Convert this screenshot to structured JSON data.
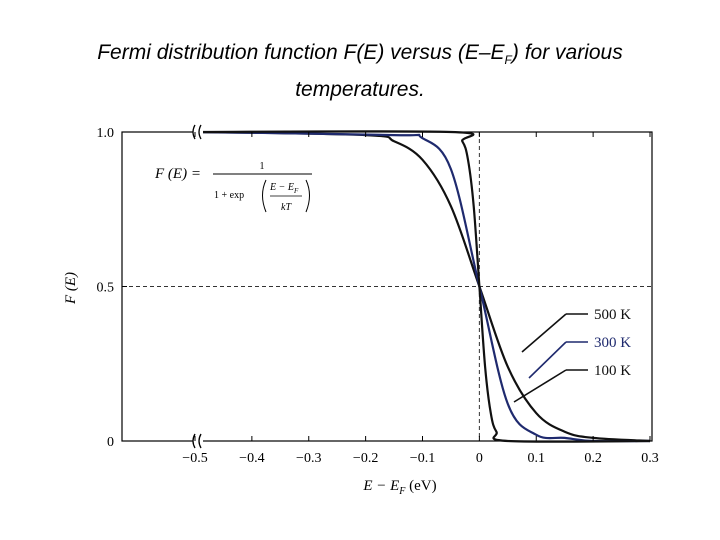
{
  "title": {
    "line1_pre": "Fermi distribution function F(E) versus (E–E",
    "line1_sub": "F",
    "line1_post": ") for various",
    "line2": "temperatures."
  },
  "chart_data": {
    "type": "line",
    "xlabel_main": "E − E",
    "xlabel_sub": "F",
    "xlabel_unit": " (eV)",
    "ylabel": "F (E)",
    "xlim": [
      -0.5,
      0.3
    ],
    "ylim": [
      0,
      1
    ],
    "x_ticks": [
      -0.5,
      -0.4,
      -0.3,
      -0.2,
      -0.1,
      0,
      0.1,
      0.2,
      0.3
    ],
    "x_tick_labels": [
      "−0.5",
      "−0.4",
      "−0.3",
      "−0.2",
      "−0.1",
      "0",
      "0.1",
      "0.2",
      "0.3"
    ],
    "y_ticks": [
      0,
      0.5,
      1.0
    ],
    "y_tick_labels": [
      "0",
      "0.5",
      "1.0"
    ],
    "reference_lines": {
      "x": 0,
      "y": 0.5,
      "style": "dashed"
    },
    "formula": {
      "lhs": "F (E) =",
      "numerator": "1",
      "denominator_prefix": "1 + exp",
      "inner_numerator": "E − E",
      "inner_numerator_sub": "F",
      "inner_denominator": "kT"
    },
    "series": [
      {
        "name": "500 K",
        "temperature_K": 500,
        "color": "#111111",
        "x": [
          -0.5,
          -0.2,
          -0.15,
          -0.1,
          -0.05,
          0,
          0.05,
          0.1,
          0.15,
          0.2,
          0.3
        ],
        "y": [
          1.0,
          0.99,
          0.97,
          0.91,
          0.76,
          0.5,
          0.24,
          0.09,
          0.03,
          0.01,
          0.0
        ]
      },
      {
        "name": "300 K",
        "temperature_K": 300,
        "color": "#1f2a6e",
        "x": [
          -0.5,
          -0.15,
          -0.1,
          -0.05,
          0,
          0.05,
          0.1,
          0.15,
          0.2,
          0.3
        ],
        "y": [
          1.0,
          0.99,
          0.98,
          0.88,
          0.5,
          0.12,
          0.02,
          0.01,
          0.0,
          0.0
        ]
      },
      {
        "name": "100 K",
        "temperature_K": 100,
        "color": "#111111",
        "x": [
          -0.5,
          -0.05,
          -0.03,
          -0.02,
          -0.01,
          0,
          0.01,
          0.02,
          0.03,
          0.05,
          0.3
        ],
        "y": [
          1.0,
          1.0,
          0.97,
          0.91,
          0.76,
          0.5,
          0.24,
          0.09,
          0.03,
          0.0,
          0.0
        ]
      }
    ],
    "legend_order": [
      "500 K",
      "300 K",
      "100 K"
    ]
  }
}
